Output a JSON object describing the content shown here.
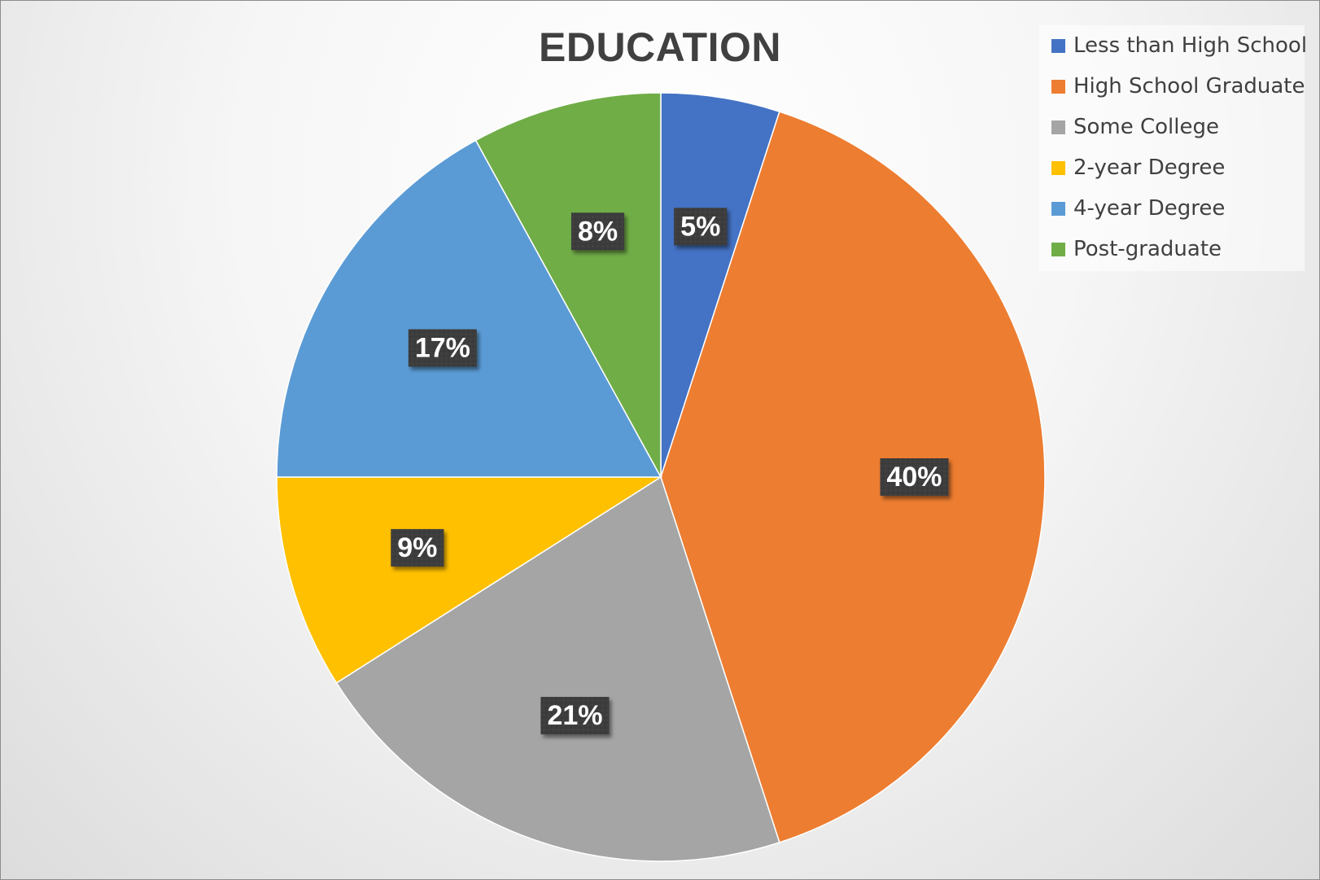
{
  "chart_data": {
    "type": "pie",
    "title": "EDUCATION",
    "categories": [
      "Less than High School",
      "High School Graduate",
      "Some College",
      "2-year Degree",
      "4-year Degree",
      "Post-graduate"
    ],
    "values": [
      5,
      40,
      21,
      9,
      17,
      8
    ],
    "data_labels": [
      "5%",
      "40%",
      "21%",
      "9%",
      "17%",
      "8%"
    ],
    "colors": [
      "#4472C4",
      "#ED7D31",
      "#A5A5A5",
      "#FFC000",
      "#5B9BD5",
      "#70AD47"
    ],
    "legend_position": "top-right",
    "start_angle": "12 o'clock",
    "direction": "clockwise"
  }
}
